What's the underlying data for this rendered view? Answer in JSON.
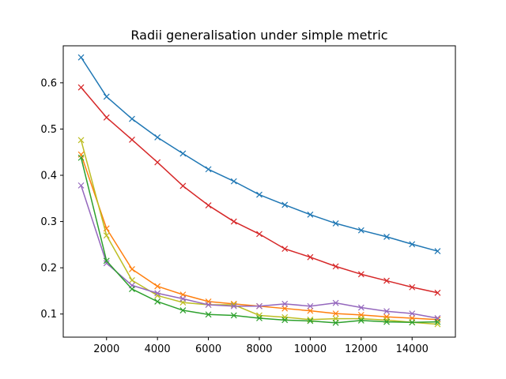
{
  "chart_data": {
    "type": "line",
    "title": "Radii generalisation under simple metric",
    "xlabel": "",
    "ylabel": "",
    "xlim": [
      300,
      15700
    ],
    "ylim": [
      0.05,
      0.68
    ],
    "xticks": [
      2000,
      4000,
      6000,
      8000,
      10000,
      12000,
      14000
    ],
    "yticks": [
      0.1,
      0.2,
      0.3,
      0.4,
      0.5,
      0.6
    ],
    "grid": false,
    "marker": "x",
    "x": [
      1000,
      2000,
      3000,
      4000,
      5000,
      6000,
      7000,
      8000,
      9000,
      10000,
      11000,
      12000,
      13000,
      14000,
      15000
    ],
    "series": [
      {
        "color": "#1f77b4",
        "values": [
          0.655,
          0.57,
          0.522,
          0.482,
          0.447,
          0.413,
          0.387,
          0.358,
          0.336,
          0.315,
          0.296,
          0.281,
          0.267,
          0.251,
          0.236
        ]
      },
      {
        "color": "#d62728",
        "values": [
          0.59,
          0.525,
          0.477,
          0.428,
          0.377,
          0.335,
          0.3,
          0.273,
          0.241,
          0.223,
          0.203,
          0.186,
          0.172,
          0.158,
          0.146
        ]
      },
      {
        "color": "#ff7f0e",
        "values": [
          0.445,
          0.285,
          0.197,
          0.16,
          0.142,
          0.127,
          0.122,
          0.117,
          0.112,
          0.107,
          0.101,
          0.098,
          0.094,
          0.091,
          0.088
        ]
      },
      {
        "color": "#bcbd22",
        "values": [
          0.476,
          0.27,
          0.173,
          0.14,
          0.125,
          0.12,
          0.12,
          0.097,
          0.093,
          0.088,
          0.09,
          0.09,
          0.087,
          0.082,
          0.078
        ]
      },
      {
        "color": "#9467bd",
        "values": [
          0.378,
          0.21,
          0.162,
          0.145,
          0.133,
          0.12,
          0.117,
          0.117,
          0.122,
          0.117,
          0.124,
          0.114,
          0.106,
          0.101,
          0.091
        ]
      },
      {
        "color": "#2ca02c",
        "values": [
          0.438,
          0.215,
          0.154,
          0.127,
          0.108,
          0.099,
          0.097,
          0.091,
          0.087,
          0.085,
          0.081,
          0.086,
          0.083,
          0.082,
          0.083
        ]
      }
    ]
  }
}
